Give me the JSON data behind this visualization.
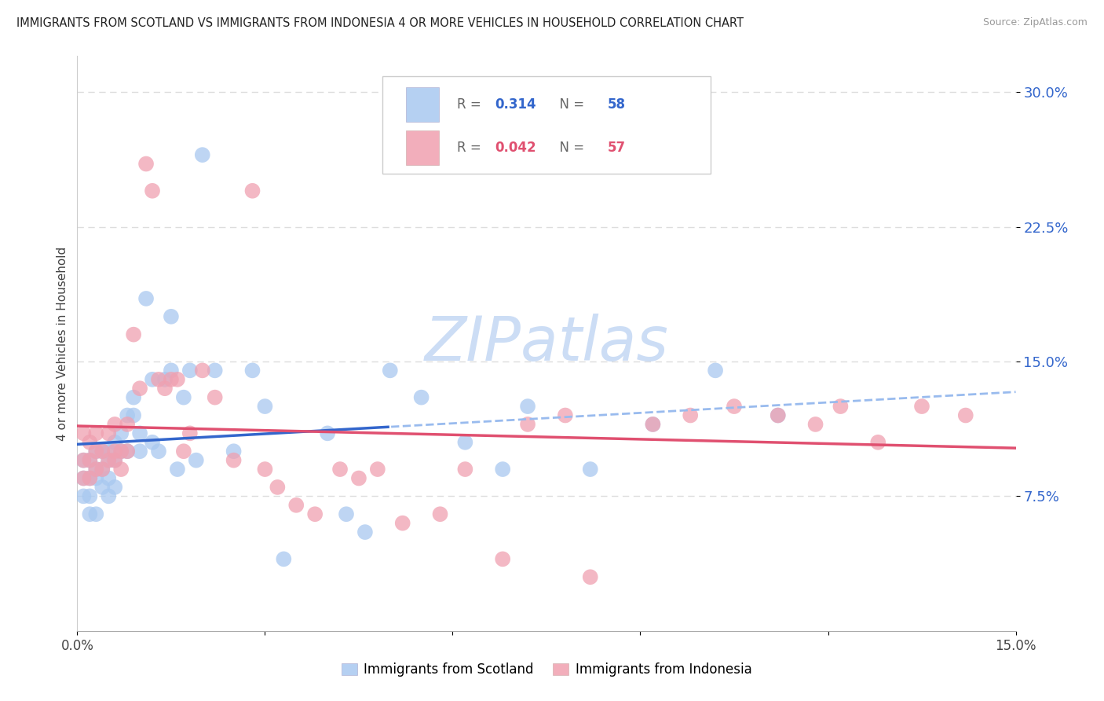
{
  "title": "IMMIGRANTS FROM SCOTLAND VS IMMIGRANTS FROM INDONESIA 4 OR MORE VEHICLES IN HOUSEHOLD CORRELATION CHART",
  "source": "Source: ZipAtlas.com",
  "ylabel": "4 or more Vehicles in Household",
  "ytick_labels": [
    "7.5%",
    "15.0%",
    "22.5%",
    "30.0%"
  ],
  "ytick_values": [
    0.075,
    0.15,
    0.225,
    0.3
  ],
  "xmin": 0.0,
  "xmax": 0.15,
  "ymin": 0.0,
  "ymax": 0.32,
  "scotland_R": 0.314,
  "scotland_N": 58,
  "indonesia_R": 0.042,
  "indonesia_N": 57,
  "scotland_color": "#a8c8f0",
  "indonesia_color": "#f0a0b0",
  "scotland_line_color": "#3366cc",
  "indonesia_line_color": "#e05070",
  "trendline_dashed_color": "#99bbee",
  "watermark_color": "#ccddf5",
  "background_color": "#ffffff",
  "grid_color": "#dddddd",
  "scotland_x": [
    0.001,
    0.001,
    0.001,
    0.002,
    0.002,
    0.002,
    0.002,
    0.003,
    0.003,
    0.003,
    0.003,
    0.004,
    0.004,
    0.004,
    0.005,
    0.005,
    0.005,
    0.005,
    0.006,
    0.006,
    0.006,
    0.007,
    0.007,
    0.008,
    0.008,
    0.009,
    0.009,
    0.01,
    0.01,
    0.011,
    0.012,
    0.012,
    0.013,
    0.014,
    0.015,
    0.015,
    0.016,
    0.017,
    0.018,
    0.019,
    0.02,
    0.022,
    0.025,
    0.028,
    0.03,
    0.033,
    0.04,
    0.043,
    0.046,
    0.05,
    0.055,
    0.062,
    0.068,
    0.072,
    0.082,
    0.092,
    0.102,
    0.112
  ],
  "scotland_y": [
    0.095,
    0.085,
    0.075,
    0.095,
    0.085,
    0.075,
    0.065,
    0.1,
    0.09,
    0.085,
    0.065,
    0.1,
    0.09,
    0.08,
    0.1,
    0.095,
    0.085,
    0.075,
    0.105,
    0.095,
    0.08,
    0.11,
    0.1,
    0.12,
    0.1,
    0.13,
    0.12,
    0.11,
    0.1,
    0.185,
    0.105,
    0.14,
    0.1,
    0.14,
    0.175,
    0.145,
    0.09,
    0.13,
    0.145,
    0.095,
    0.265,
    0.145,
    0.1,
    0.145,
    0.125,
    0.04,
    0.11,
    0.065,
    0.055,
    0.145,
    0.13,
    0.105,
    0.09,
    0.125,
    0.09,
    0.115,
    0.145,
    0.12
  ],
  "indonesia_x": [
    0.001,
    0.001,
    0.001,
    0.002,
    0.002,
    0.002,
    0.003,
    0.003,
    0.003,
    0.004,
    0.004,
    0.005,
    0.005,
    0.006,
    0.006,
    0.006,
    0.007,
    0.007,
    0.008,
    0.008,
    0.009,
    0.01,
    0.011,
    0.012,
    0.013,
    0.014,
    0.015,
    0.016,
    0.017,
    0.018,
    0.02,
    0.022,
    0.025,
    0.028,
    0.03,
    0.032,
    0.035,
    0.038,
    0.042,
    0.045,
    0.048,
    0.052,
    0.058,
    0.062,
    0.068,
    0.072,
    0.078,
    0.082,
    0.092,
    0.098,
    0.105,
    0.112,
    0.118,
    0.122,
    0.128,
    0.135,
    0.142
  ],
  "indonesia_y": [
    0.11,
    0.095,
    0.085,
    0.105,
    0.095,
    0.085,
    0.11,
    0.1,
    0.09,
    0.1,
    0.09,
    0.11,
    0.095,
    0.115,
    0.1,
    0.095,
    0.1,
    0.09,
    0.115,
    0.1,
    0.165,
    0.135,
    0.26,
    0.245,
    0.14,
    0.135,
    0.14,
    0.14,
    0.1,
    0.11,
    0.145,
    0.13,
    0.095,
    0.245,
    0.09,
    0.08,
    0.07,
    0.065,
    0.09,
    0.085,
    0.09,
    0.06,
    0.065,
    0.09,
    0.04,
    0.115,
    0.12,
    0.03,
    0.115,
    0.12,
    0.125,
    0.12,
    0.115,
    0.125,
    0.105,
    0.125,
    0.12
  ]
}
